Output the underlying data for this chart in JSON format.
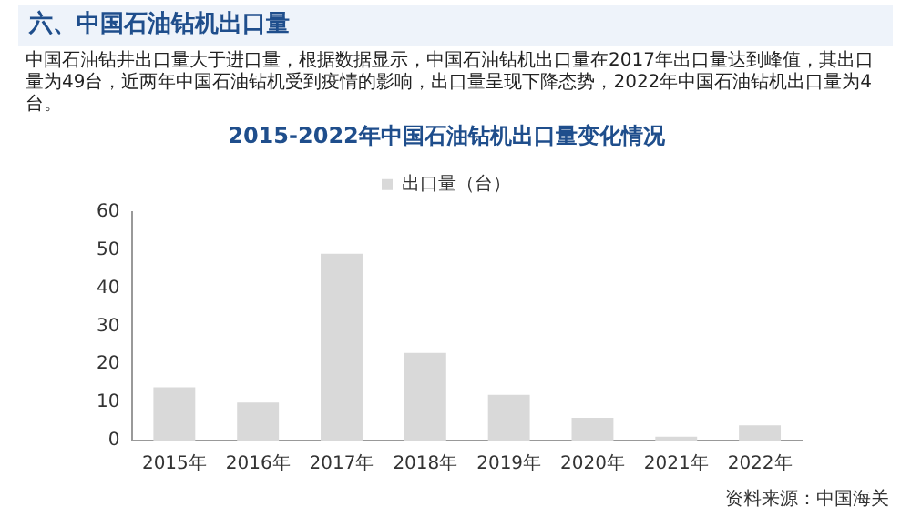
{
  "chart_data": {
    "type": "bar",
    "title": "2015-2022年中国石油钻机出口量变化情况",
    "annotations": [
      "六、中国石油钻机出口量",
      "中国石油钻井出口量大于进口量，根据数据显示，中国石油钻机出口量在2017年出口量达到峰值，其出口量为49台，近两年中国石油钻机受到疫情的影响，出口量呈现下降态势，2022年中国石油钻机出口量为4台。",
      "资料来源：中国海关"
    ],
    "categories": [
      "2015年",
      "2016年",
      "2017年",
      "2018年",
      "2019年",
      "2020年",
      "2021年",
      "2022年"
    ],
    "series": [
      {
        "name": "出口量（台）",
        "color": "#d9d9d9",
        "values": [
          14,
          10,
          49,
          23,
          12,
          6,
          1,
          4
        ]
      }
    ],
    "ylim": [
      0,
      60
    ],
    "yticks": [
      0,
      10,
      20,
      30,
      40,
      50,
      60
    ],
    "grid": false,
    "legend": "top"
  }
}
